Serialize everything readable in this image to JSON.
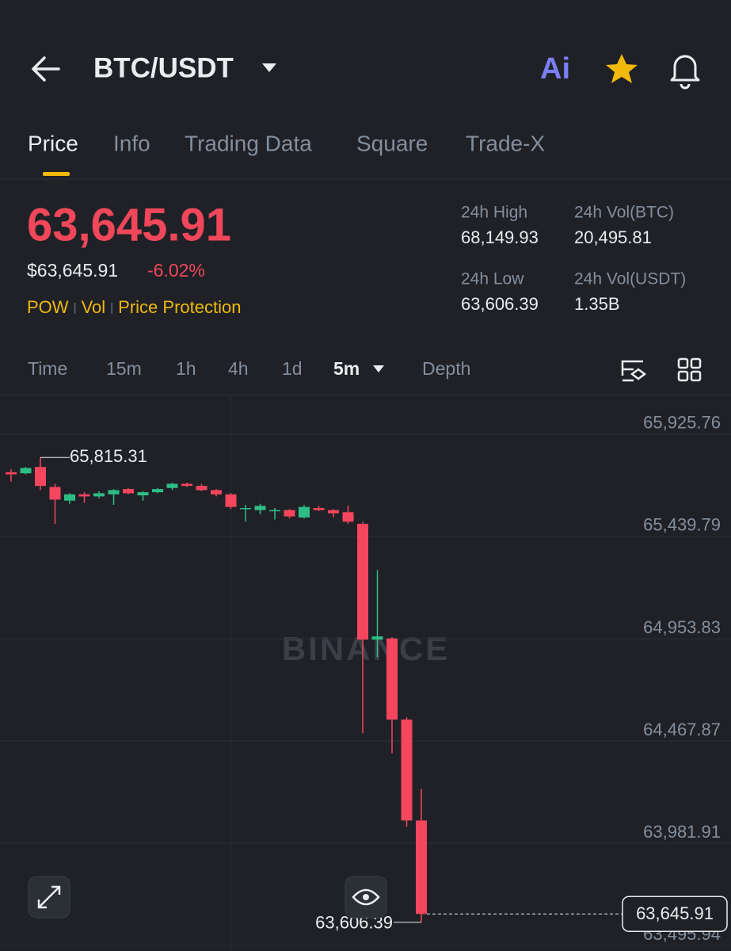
{
  "header": {
    "pair": "BTC/USDT",
    "ai_button": "Ai"
  },
  "tabs": [
    "Price",
    "Info",
    "Trading Data",
    "Square",
    "Trade-X"
  ],
  "price": {
    "last": "63,645.91",
    "usd": "$63,645.91",
    "change": "-6.02%",
    "tags": [
      "POW",
      "Vol",
      "Price Protection"
    ]
  },
  "stats": [
    {
      "label": "24h High",
      "value": "68,149.93"
    },
    {
      "label": "24h Vol(BTC)",
      "value": "20,495.81"
    },
    {
      "label": "24h Low",
      "value": "63,606.39"
    },
    {
      "label": "24h Vol(USDT)",
      "value": "1.35B"
    }
  ],
  "intervals": [
    "Time",
    "15m",
    "1h",
    "4h",
    "1d",
    "5m",
    "Depth"
  ],
  "chart_data": {
    "type": "candlestick",
    "watermark": "BINANCE",
    "ylim": [
      63470,
      66106
    ],
    "yticks": [
      {
        "value": 65925.76,
        "label": "65,925.76"
      },
      {
        "value": 65439.79,
        "label": "65,439.79"
      },
      {
        "value": 64953.83,
        "label": "64,953.83"
      },
      {
        "value": 64467.87,
        "label": "64,467.87"
      },
      {
        "value": 63981.91,
        "label": "63,981.91"
      },
      {
        "value": 63495.94,
        "label": "63,495.94"
      }
    ],
    "grid": true,
    "colors": {
      "up": "#2ebd85",
      "down": "#f6465d"
    },
    "open": [
      65745,
      65740,
      65770,
      65675,
      65610,
      65640,
      65630,
      65640,
      65665,
      65635,
      65650,
      65670,
      65690,
      65680,
      65660,
      65640,
      65570,
      65565,
      65560,
      65565,
      65530,
      65575,
      65565,
      65555,
      65500,
      64950,
      64955,
      64570,
      64090
    ],
    "high": [
      65760,
      65770,
      65815.31,
      65690,
      65645,
      65650,
      65655,
      65665,
      65670,
      65655,
      65670,
      65695,
      65695,
      65690,
      65665,
      65645,
      65590,
      65595,
      65575,
      65570,
      65590,
      65585,
      65570,
      65585,
      65510,
      65280,
      64960,
      64580,
      64240
    ],
    "low": [
      65700,
      65735,
      65660,
      65500,
      65595,
      65600,
      65620,
      65590,
      65640,
      65610,
      65645,
      65660,
      65675,
      65655,
      65630,
      65570,
      65510,
      65545,
      65520,
      65525,
      65525,
      65560,
      65530,
      65500,
      64505,
      64865,
      64410,
      64060,
      63606.39
    ],
    "close": [
      65735,
      65765,
      65680,
      65615,
      65640,
      65630,
      65645,
      65660,
      65645,
      65650,
      65665,
      65690,
      65680,
      65660,
      65640,
      65580,
      65575,
      65585,
      65565,
      65535,
      65580,
      65565,
      65550,
      65510,
      64950,
      64965,
      64570,
      64090,
      63645.91
    ],
    "annotations": [
      {
        "value": 65815.31,
        "label": "65,815.31"
      },
      {
        "value": 63606.39,
        "label": "63,606.39"
      }
    ],
    "last_price": {
      "value": 63645.91,
      "label": "63,645.91"
    }
  }
}
